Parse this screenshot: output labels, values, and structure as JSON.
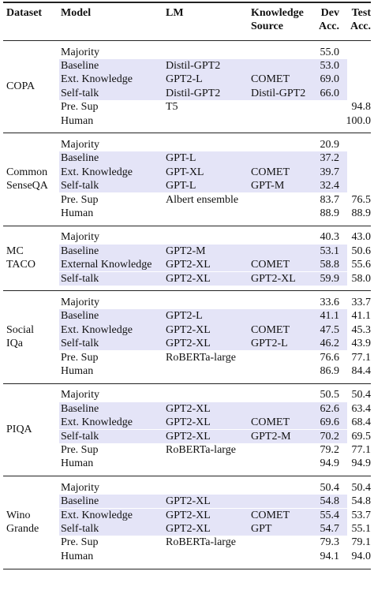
{
  "table": {
    "header": [
      [
        "Dataset"
      ],
      [
        "Model"
      ],
      [
        "LM"
      ],
      [
        "Knowledge",
        "Source"
      ],
      [
        "Dev",
        "Acc."
      ],
      [
        "Test",
        "Acc."
      ]
    ],
    "groups": [
      {
        "dataset": [
          "COPA"
        ],
        "highlighted_rows": [
          1,
          2,
          3
        ],
        "rows": [
          [
            "Majority",
            null,
            null,
            "55.0",
            null
          ],
          [
            "Baseline",
            "Distil-GPT2",
            null,
            "53.0",
            null
          ],
          [
            "Ext. Knowledge",
            "GPT2-L",
            "COMET",
            "69.0",
            null
          ],
          [
            "Self-talk",
            "Distil-GPT2",
            "Distil-GPT2",
            "66.0",
            null
          ],
          [
            "Pre. Sup",
            "T5",
            null,
            null,
            "94.8"
          ],
          [
            "Human",
            null,
            null,
            null,
            "100.0"
          ]
        ]
      },
      {
        "dataset": [
          "Common",
          "SenseQA"
        ],
        "highlighted_rows": [
          1,
          2,
          3
        ],
        "rows": [
          [
            "Majority",
            null,
            null,
            "20.9",
            null
          ],
          [
            "Baseline",
            "GPT-L",
            null,
            "37.2",
            null
          ],
          [
            "Ext. Knowledge",
            "GPT-XL",
            "COMET",
            "39.7",
            null
          ],
          [
            "Self-talk",
            "GPT-L",
            "GPT-M",
            "32.4",
            null
          ],
          [
            "Pre. Sup",
            "Albert ensemble",
            null,
            "83.7",
            "76.5"
          ],
          [
            "Human",
            null,
            null,
            "88.9",
            "88.9"
          ]
        ]
      },
      {
        "dataset": [
          "MC",
          "TACO"
        ],
        "highlighted_rows": [
          1,
          2,
          3
        ],
        "rows": [
          [
            "Majority",
            null,
            null,
            "40.3",
            "43.0"
          ],
          [
            "Baseline",
            "GPT2-M",
            null,
            "53.1",
            "50.6"
          ],
          [
            "External Knowledge",
            "GPT2-XL",
            "COMET",
            "58.8",
            "55.6"
          ],
          [
            "Self-talk",
            "GPT2-XL",
            "GPT2-XL",
            "59.9",
            "58.0"
          ]
        ]
      },
      {
        "dataset": [
          "Social",
          "IQa"
        ],
        "highlighted_rows": [
          1,
          2,
          3
        ],
        "rows": [
          [
            "Majority",
            null,
            null,
            "33.6",
            "33.7"
          ],
          [
            "Baseline",
            "GPT2-L",
            null,
            "41.1",
            "41.1"
          ],
          [
            "Ext. Knowledge",
            "GPT2-XL",
            "COMET",
            "47.5",
            "45.3"
          ],
          [
            "Self-talk",
            "GPT2-XL",
            "GPT2-L",
            "46.2",
            "43.9"
          ],
          [
            "Pre. Sup",
            "RoBERTa-large",
            null,
            "76.6",
            "77.1"
          ],
          [
            "Human",
            null,
            null,
            "86.9",
            "84.4"
          ]
        ]
      },
      {
        "dataset": [
          "PIQA"
        ],
        "highlighted_rows": [
          1,
          2,
          3
        ],
        "rows": [
          [
            "Majority",
            null,
            null,
            "50.5",
            "50.4"
          ],
          [
            "Baseline",
            "GPT2-XL",
            null,
            "62.6",
            "63.4"
          ],
          [
            "Ext. Knowledge",
            "GPT2-XL",
            "COMET",
            "69.6",
            "68.4"
          ],
          [
            "Self-talk",
            "GPT2-XL",
            "GPT2-M",
            "70.2",
            "69.5"
          ],
          [
            "Pre. Sup",
            "RoBERTa-large",
            null,
            "79.2",
            "77.1"
          ],
          [
            "Human",
            null,
            null,
            "94.9",
            "94.9"
          ]
        ]
      },
      {
        "dataset": [
          "Wino",
          "Grande"
        ],
        "highlighted_rows": [
          1,
          2,
          3
        ],
        "rows": [
          [
            "Majority",
            null,
            null,
            "50.4",
            "50.4"
          ],
          [
            "Baseline",
            "GPT2-XL",
            null,
            "54.8",
            "54.8"
          ],
          [
            "Ext. Knowledge",
            "GPT2-XL",
            "COMET",
            "55.4",
            "53.7"
          ],
          [
            "Self-talk",
            "GPT2-XL",
            "GPT",
            "54.7",
            "55.1"
          ],
          [
            "Pre. Sup",
            "RoBERTa-large",
            null,
            "79.3",
            "79.1"
          ],
          [
            "Human",
            null,
            null,
            "94.1",
            "94.0"
          ]
        ]
      }
    ]
  }
}
